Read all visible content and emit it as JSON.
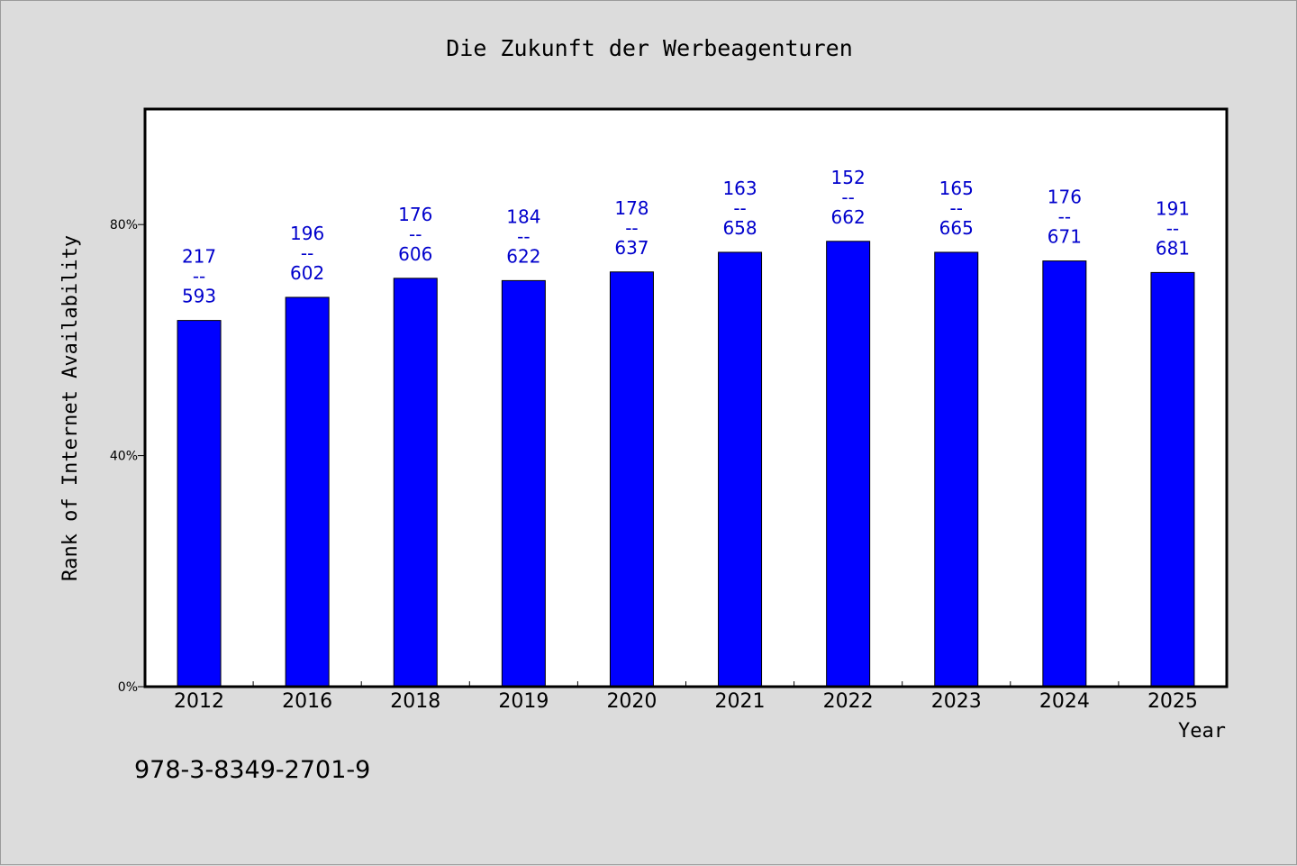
{
  "colors": {
    "background": "#dcdcdc",
    "plot_background": "#ffffff",
    "bar": "#0000ff",
    "data_label": "#0000cc",
    "axis": "#000000"
  },
  "footnote": "978-3-8349-2701-9",
  "chart_data": {
    "type": "bar",
    "title": "Die Zukunft der Werbeagenturen",
    "xlabel": "Year",
    "ylabel": "Rank of Internet Availability",
    "ylim": [
      0,
      1
    ],
    "yticks": [
      0,
      0.4,
      0.8
    ],
    "ytick_labels": [
      "0%",
      "40%",
      "80%"
    ],
    "grid": false,
    "categories": [
      "2012",
      "2016",
      "2018",
      "2019",
      "2020",
      "2021",
      "2022",
      "2023",
      "2024",
      "2025"
    ],
    "values": [
      0.634,
      0.674,
      0.707,
      0.703,
      0.718,
      0.752,
      0.771,
      0.752,
      0.737,
      0.717
    ],
    "data_labels": [
      [
        "217",
        "--",
        "593"
      ],
      [
        "196",
        "--",
        "602"
      ],
      [
        "176",
        "--",
        "606"
      ],
      [
        "184",
        "--",
        "622"
      ],
      [
        "178",
        "--",
        "637"
      ],
      [
        "163",
        "--",
        "658"
      ],
      [
        "152",
        "--",
        "662"
      ],
      [
        "165",
        "--",
        "665"
      ],
      [
        "176",
        "--",
        "671"
      ],
      [
        "191",
        "--",
        "681"
      ]
    ]
  }
}
